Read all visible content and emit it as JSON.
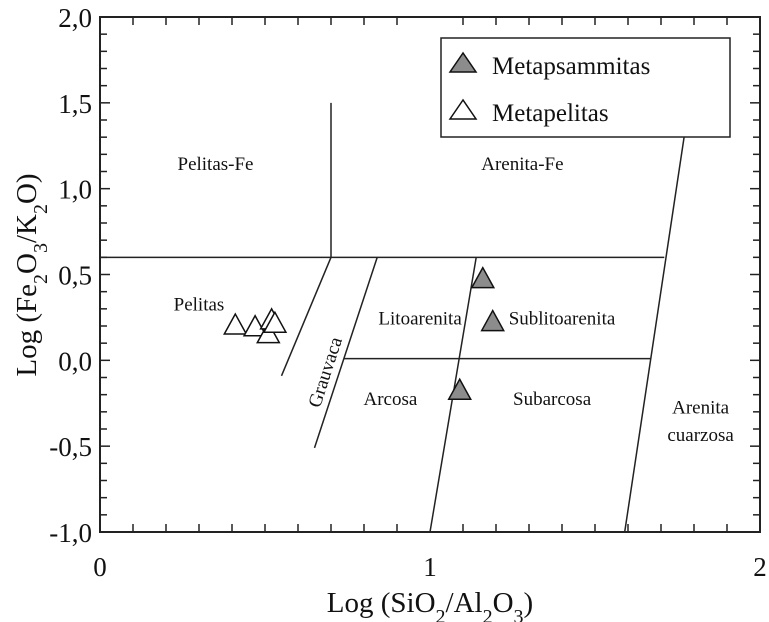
{
  "chart_data": {
    "type": "scatter",
    "title": "",
    "xlabel": "Log (SiO2/Al2O3)",
    "ylabel": "Log (Fe2O3/K2O)",
    "xlabel_parts": [
      "Log (SiO",
      "2",
      "/Al",
      "2",
      "O",
      "3",
      ")"
    ],
    "ylabel_parts": [
      "Log (Fe",
      "2",
      "O",
      "3",
      "/K",
      "2",
      "O)"
    ],
    "xlim": [
      0,
      2
    ],
    "ylim": [
      -1,
      2
    ],
    "xticks": [
      {
        "v": 0,
        "label": "0"
      },
      {
        "v": 1,
        "label": "1"
      },
      {
        "v": 2,
        "label": "2"
      }
    ],
    "yticks": [
      {
        "v": -1,
        "label": "-1,0"
      },
      {
        "v": -0.5,
        "label": "-0,5"
      },
      {
        "v": 0,
        "label": "0,0"
      },
      {
        "v": 0.5,
        "label": "0,5"
      },
      {
        "v": 1,
        "label": "1,0"
      },
      {
        "v": 1.5,
        "label": "1,5"
      },
      {
        "v": 2,
        "label": "2,0"
      }
    ],
    "grid": false,
    "legend_position": "top-right",
    "series": [
      {
        "name": "Metapsammitas",
        "marker": "triangle",
        "fill": "#8c8c8c",
        "points": [
          [
            1.16,
            0.47
          ],
          [
            1.19,
            0.22
          ],
          [
            1.09,
            -0.18
          ]
        ]
      },
      {
        "name": "Metapelitas",
        "marker": "triangle",
        "fill": "#ffffff",
        "points": [
          [
            0.41,
            0.2
          ],
          [
            0.47,
            0.19
          ],
          [
            0.51,
            0.15
          ],
          [
            0.52,
            0.23
          ],
          [
            0.53,
            0.21
          ]
        ]
      }
    ],
    "boundaries": [
      [
        [
          0,
          0.6
        ],
        [
          1.71,
          0.6
        ]
      ],
      [
        [
          0.7,
          0.6
        ],
        [
          0.7,
          1.5
        ]
      ],
      [
        [
          0.7,
          0.6
        ],
        [
          0.55,
          -0.09
        ]
      ],
      [
        [
          0.84,
          0.6
        ],
        [
          0.65,
          -0.51
        ]
      ],
      [
        [
          1.14,
          0.6
        ],
        [
          1.0,
          -1.0
        ]
      ],
      [
        [
          1.77,
          1.3
        ],
        [
          1.59,
          -1.0
        ]
      ],
      [
        [
          0.74,
          0.01
        ],
        [
          1.67,
          0.01
        ]
      ]
    ],
    "field_labels": [
      {
        "text": "Pelitas-Fe",
        "x": 0.35,
        "y": 1.15
      },
      {
        "text": "Arenita-Fe",
        "x": 1.28,
        "y": 1.15
      },
      {
        "text": "Pelitas",
        "x": 0.3,
        "y": 0.33
      },
      {
        "text": "Litoarenita",
        "x": 0.97,
        "y": 0.25
      },
      {
        "text": "Sublitoarenita",
        "x": 1.4,
        "y": 0.25
      },
      {
        "text": "Arcosa",
        "x": 0.88,
        "y": -0.22
      },
      {
        "text": "Subarcosa",
        "x": 1.37,
        "y": -0.22
      },
      {
        "text": "Arenita",
        "x": 1.82,
        "y": -0.27
      },
      {
        "text": "cuarzosa",
        "x": 1.82,
        "y": -0.43
      }
    ],
    "rotated_label": {
      "text": "Grauvaca",
      "x": 0.7,
      "y": -0.08,
      "angle": -72
    }
  }
}
